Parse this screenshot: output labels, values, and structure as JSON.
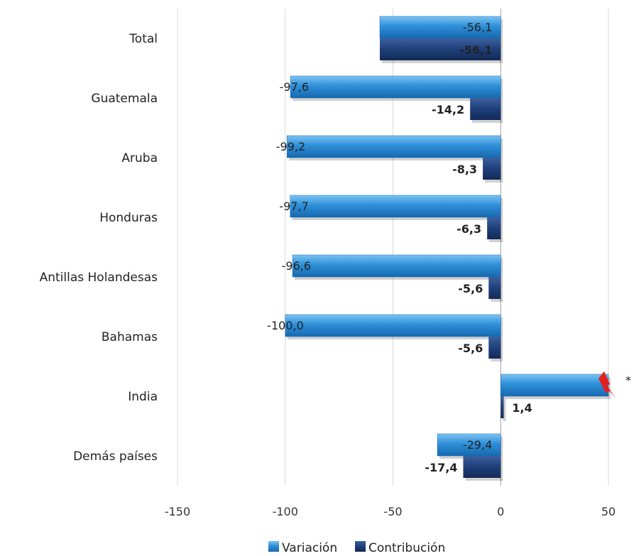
{
  "chart_data": {
    "type": "bar",
    "orientation": "horizontal",
    "categories": [
      "Total",
      "Guatemala",
      "Aruba",
      "Honduras",
      "Antillas Holandesas",
      "Bahamas",
      "India",
      "Demás países"
    ],
    "series": [
      {
        "name": "Variación",
        "values": [
          -56.1,
          -97.6,
          -99.2,
          -97.7,
          -96.6,
          -100.0,
          50,
          -29.4
        ],
        "labels": [
          "-56,1",
          "-97,6",
          "-99,2",
          "-97,7",
          "-96,6",
          "-100,0",
          "",
          "-29,4"
        ],
        "color": "#2e8fd8"
      },
      {
        "name": "Contribución",
        "values": [
          -56.1,
          -14.2,
          -8.3,
          -6.3,
          -5.6,
          -5.6,
          1.4,
          -17.4
        ],
        "labels": [
          "-56,1",
          "-14,2",
          "-8,3",
          "-6,3",
          "-5,6",
          "-5,6",
          "1,4",
          "-17,4"
        ],
        "color": "#1f3f7a"
      }
    ],
    "x_ticks": [
      "-150",
      "-100",
      "-50",
      "0",
      "50"
    ],
    "xlim": [
      -150,
      50
    ],
    "truncated_bar_marker": "*",
    "grid": true,
    "legend_position": "bottom"
  }
}
